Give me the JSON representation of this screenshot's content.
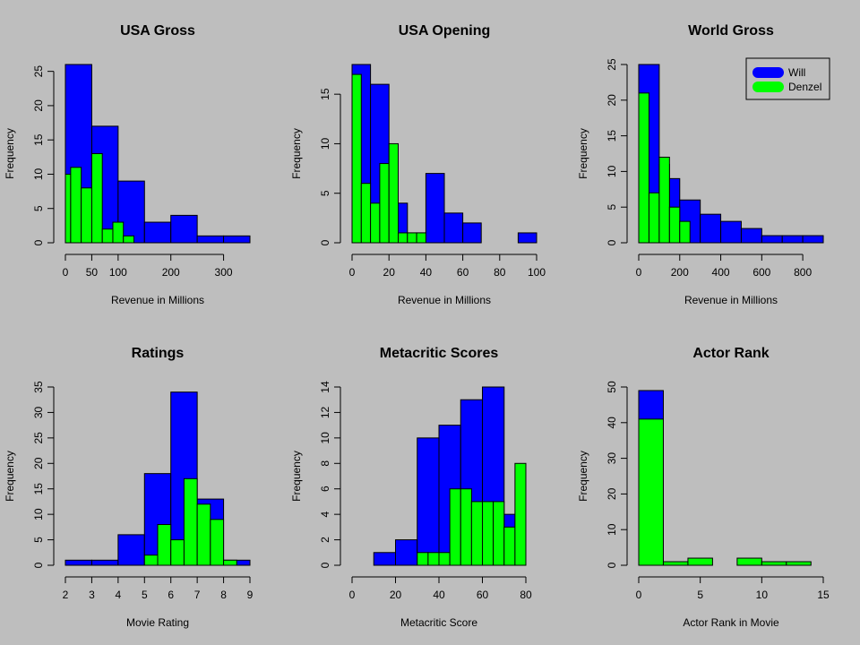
{
  "colors": {
    "background": "#bebebe",
    "will": "#0000ff",
    "denzel": "#00ff00",
    "outline": "#000000"
  },
  "legend": {
    "position": "top-right",
    "in_panel": 2,
    "entries": [
      "Will",
      "Denzel"
    ]
  },
  "chart_data": [
    {
      "type": "bar",
      "title": "USA Gross",
      "xlabel": "Revenue in Millions",
      "ylabel": "Frequency",
      "xlim": [
        0,
        350
      ],
      "ylim": [
        0,
        26
      ],
      "xticks": [
        0,
        50,
        100,
        200,
        300
      ],
      "yticks": [
        0,
        5,
        10,
        15,
        20,
        25
      ],
      "series": [
        {
          "name": "Will",
          "bins": [
            [
              0,
              50,
              26
            ],
            [
              50,
              100,
              17
            ],
            [
              100,
              150,
              9
            ],
            [
              150,
              200,
              3
            ],
            [
              200,
              250,
              4
            ],
            [
              250,
              300,
              1
            ],
            [
              300,
              350,
              1
            ]
          ]
        },
        {
          "name": "Denzel",
          "bins": [
            [
              0,
              10,
              10
            ],
            [
              10,
              30,
              11
            ],
            [
              30,
              50,
              8
            ],
            [
              50,
              70,
              13
            ],
            [
              70,
              90,
              2
            ],
            [
              90,
              110,
              3
            ],
            [
              110,
              130,
              1
            ]
          ]
        }
      ]
    },
    {
      "type": "bar",
      "title": "USA Opening",
      "xlabel": "Revenue in Millions",
      "ylabel": "Frequency",
      "xlim": [
        0,
        100
      ],
      "ylim": [
        0,
        18
      ],
      "xticks": [
        0,
        20,
        40,
        60,
        80,
        100
      ],
      "yticks": [
        0,
        5,
        10,
        15
      ],
      "series": [
        {
          "name": "Will",
          "bins": [
            [
              0,
              10,
              18
            ],
            [
              10,
              20,
              16
            ],
            [
              20,
              30,
              4
            ],
            [
              30,
              40,
              1
            ],
            [
              40,
              50,
              7
            ],
            [
              50,
              60,
              3
            ],
            [
              60,
              70,
              2
            ],
            [
              70,
              80,
              0
            ],
            [
              80,
              90,
              0
            ],
            [
              90,
              100,
              1
            ]
          ]
        },
        {
          "name": "Denzel",
          "bins": [
            [
              0,
              5,
              17
            ],
            [
              5,
              10,
              6
            ],
            [
              10,
              15,
              4
            ],
            [
              15,
              20,
              8
            ],
            [
              20,
              25,
              10
            ],
            [
              25,
              30,
              1
            ],
            [
              30,
              35,
              1
            ],
            [
              35,
              40,
              1
            ]
          ]
        }
      ]
    },
    {
      "type": "bar",
      "title": "World Gross",
      "xlabel": "Revenue in Millions",
      "ylabel": "Frequency",
      "xlim": [
        0,
        900
      ],
      "ylim": [
        0,
        25
      ],
      "xticks": [
        0,
        200,
        400,
        600,
        800
      ],
      "yticks": [
        0,
        5,
        10,
        15,
        20,
        25
      ],
      "series": [
        {
          "name": "Will",
          "bins": [
            [
              0,
              100,
              25
            ],
            [
              100,
              150,
              11
            ],
            [
              150,
              200,
              9
            ],
            [
              200,
              300,
              6
            ],
            [
              300,
              400,
              4
            ],
            [
              400,
              500,
              3
            ],
            [
              500,
              600,
              2
            ],
            [
              600,
              700,
              1
            ],
            [
              700,
              800,
              1
            ],
            [
              800,
              900,
              1
            ]
          ]
        },
        {
          "name": "Denzel",
          "bins": [
            [
              0,
              50,
              21
            ],
            [
              50,
              100,
              7
            ],
            [
              100,
              150,
              12
            ],
            [
              150,
              200,
              5
            ],
            [
              200,
              250,
              3
            ]
          ]
        }
      ]
    },
    {
      "type": "bar",
      "title": "Ratings",
      "xlabel": "Movie Rating",
      "ylabel": "Frequency",
      "xlim": [
        2,
        9
      ],
      "ylim": [
        0,
        35
      ],
      "xticks": [
        2,
        3,
        4,
        5,
        6,
        7,
        8,
        9
      ],
      "yticks": [
        0,
        5,
        10,
        15,
        20,
        25,
        30,
        35
      ],
      "series": [
        {
          "name": "Will",
          "bins": [
            [
              2,
              3,
              1
            ],
            [
              3,
              4,
              1
            ],
            [
              4,
              5,
              6
            ],
            [
              5,
              6,
              18
            ],
            [
              6,
              7,
              34
            ],
            [
              7,
              8,
              13
            ],
            [
              8,
              9,
              1
            ]
          ]
        },
        {
          "name": "Denzel",
          "bins": [
            [
              5,
              5.5,
              2
            ],
            [
              5.5,
              6,
              8
            ],
            [
              6,
              6.5,
              5
            ],
            [
              6.5,
              7,
              17
            ],
            [
              7,
              7.5,
              12
            ],
            [
              7.5,
              8,
              9
            ],
            [
              8,
              8.5,
              1
            ]
          ]
        }
      ]
    },
    {
      "type": "bar",
      "title": "Metacritic Scores",
      "xlabel": "Metacritic Score",
      "ylabel": "Frequency",
      "xlim": [
        0,
        80
      ],
      "ylim": [
        0,
        14
      ],
      "xticks": [
        0,
        20,
        40,
        60,
        80
      ],
      "yticks": [
        0,
        2,
        4,
        6,
        8,
        10,
        12,
        14
      ],
      "series": [
        {
          "name": "Will",
          "bins": [
            [
              10,
              20,
              1
            ],
            [
              20,
              30,
              2
            ],
            [
              30,
              40,
              10
            ],
            [
              40,
              50,
              11
            ],
            [
              50,
              60,
              13
            ],
            [
              60,
              70,
              14
            ],
            [
              70,
              75,
              4
            ]
          ]
        },
        {
          "name": "Denzel",
          "bins": [
            [
              30,
              35,
              1
            ],
            [
              35,
              40,
              1
            ],
            [
              40,
              45,
              1
            ],
            [
              45,
              50,
              6
            ],
            [
              50,
              55,
              6
            ],
            [
              55,
              60,
              5
            ],
            [
              60,
              65,
              5
            ],
            [
              65,
              70,
              5
            ],
            [
              70,
              75,
              3
            ],
            [
              75,
              80,
              8
            ]
          ]
        }
      ]
    },
    {
      "type": "bar",
      "title": "Actor Rank",
      "xlabel": "Actor Rank in Movie",
      "ylabel": "Frequency",
      "xlim": [
        0,
        15
      ],
      "ylim": [
        0,
        50
      ],
      "xticks": [
        0,
        5,
        10,
        15
      ],
      "yticks": [
        0,
        10,
        20,
        30,
        40,
        50
      ],
      "series": [
        {
          "name": "Will",
          "bins": [
            [
              0,
              2,
              49
            ]
          ]
        },
        {
          "name": "Denzel",
          "bins": [
            [
              0,
              2,
              41
            ],
            [
              2,
              4,
              1
            ],
            [
              4,
              6,
              2
            ],
            [
              6,
              8,
              0
            ],
            [
              8,
              10,
              2
            ],
            [
              10,
              12,
              1
            ],
            [
              12,
              14,
              1
            ]
          ]
        }
      ]
    }
  ]
}
